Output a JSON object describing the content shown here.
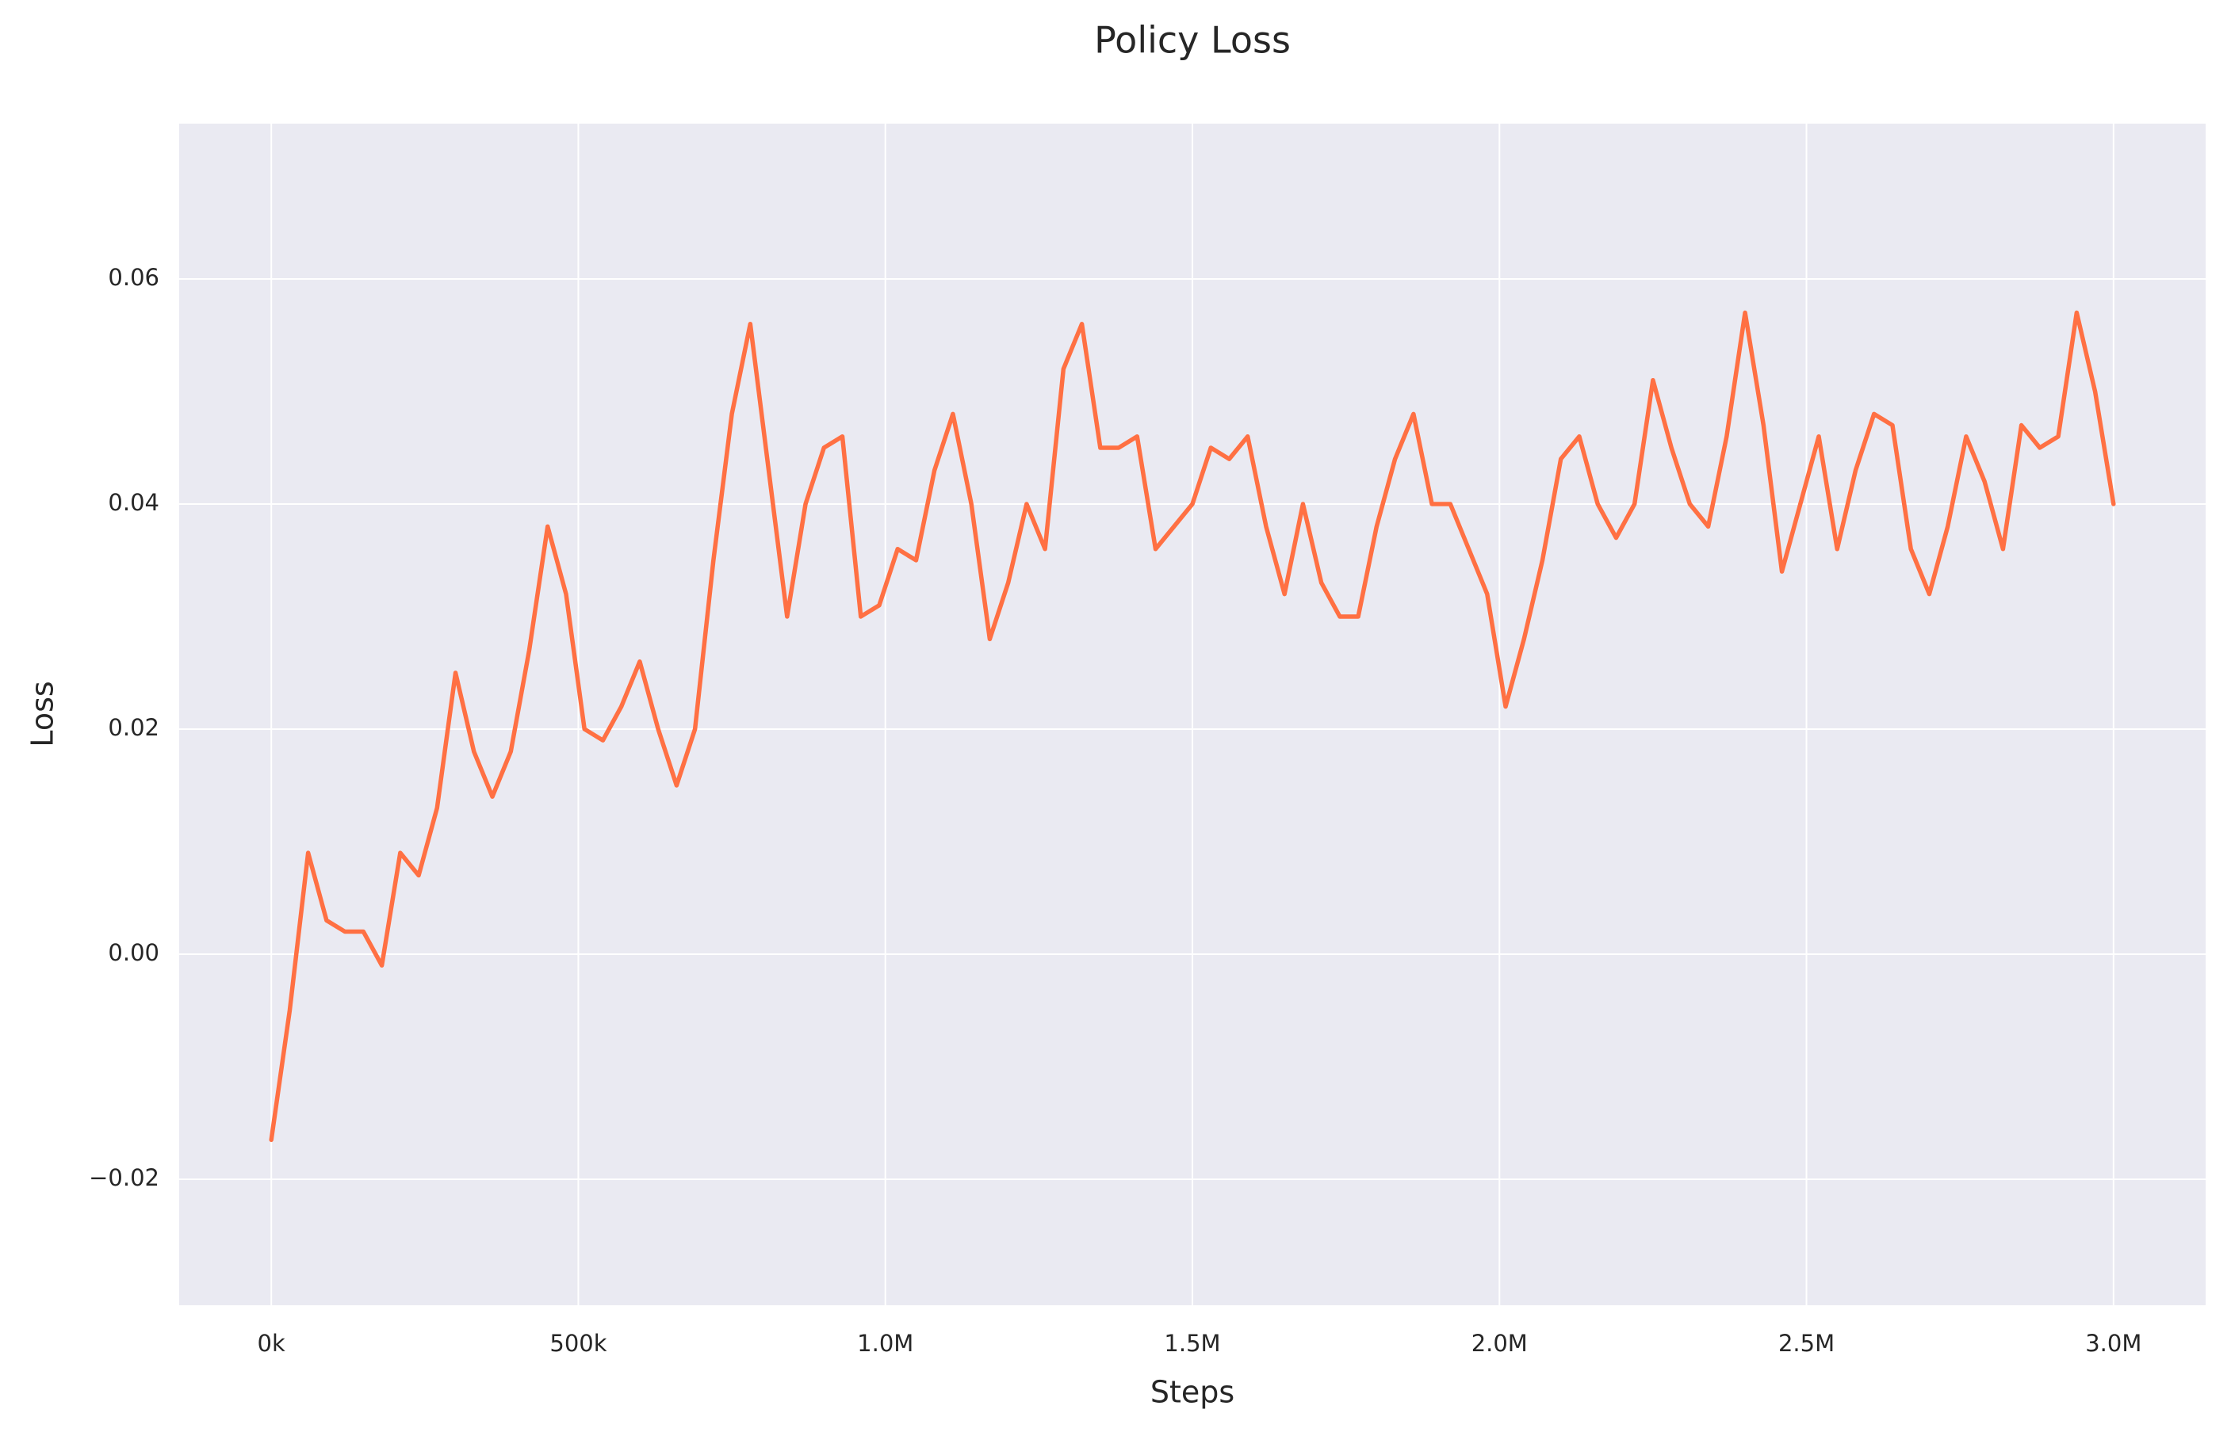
{
  "chart_data": {
    "type": "line",
    "title": "Policy Loss",
    "x_label": "Steps",
    "y_label": "Loss",
    "x": [
      0,
      30000,
      60000,
      90000,
      120000,
      150000,
      180000,
      210000,
      240000,
      270000,
      300000,
      330000,
      360000,
      390000,
      420000,
      450000,
      480000,
      510000,
      540000,
      570000,
      600000,
      630000,
      660000,
      690000,
      720000,
      750000,
      780000,
      810000,
      840000,
      870000,
      900000,
      930000,
      960000,
      990000,
      1020000,
      1050000,
      1080000,
      1110000,
      1140000,
      1170000,
      1200000,
      1230000,
      1260000,
      1290000,
      1320000,
      1350000,
      1380000,
      1410000,
      1440000,
      1470000,
      1500000,
      1530000,
      1560000,
      1590000,
      1620000,
      1650000,
      1680000,
      1710000,
      1740000,
      1770000,
      1800000,
      1830000,
      1860000,
      1890000,
      1920000,
      1950000,
      1980000,
      2010000,
      2040000,
      2070000,
      2100000,
      2130000,
      2160000,
      2190000,
      2220000,
      2250000,
      2280000,
      2310000,
      2340000,
      2370000,
      2400000,
      2430000,
      2460000,
      2490000,
      2520000,
      2550000,
      2580000,
      2610000,
      2640000,
      2670000,
      2700000,
      2730000,
      2760000,
      2790000,
      2820000,
      2850000,
      2880000,
      2910000,
      2940000,
      2970000,
      3000000
    ],
    "values": [
      -0.0165,
      -0.005,
      0.009,
      0.003,
      0.002,
      0.002,
      -0.001,
      0.009,
      0.007,
      0.013,
      0.025,
      0.018,
      0.014,
      0.018,
      0.027,
      0.038,
      0.032,
      0.02,
      0.019,
      0.022,
      0.026,
      0.02,
      0.015,
      0.02,
      0.035,
      0.048,
      0.056,
      0.043,
      0.03,
      0.04,
      0.045,
      0.046,
      0.03,
      0.031,
      0.036,
      0.035,
      0.043,
      0.048,
      0.04,
      0.028,
      0.033,
      0.04,
      0.036,
      0.052,
      0.056,
      0.045,
      0.045,
      0.046,
      0.036,
      0.038,
      0.04,
      0.045,
      0.044,
      0.046,
      0.038,
      0.032,
      0.04,
      0.033,
      0.03,
      0.03,
      0.038,
      0.044,
      0.048,
      0.04,
      0.04,
      0.036,
      0.032,
      0.022,
      0.028,
      0.035,
      0.044,
      0.046,
      0.04,
      0.037,
      0.04,
      0.051,
      0.045,
      0.04,
      0.038,
      0.046,
      0.057,
      0.047,
      0.034,
      0.04,
      0.046,
      0.036,
      0.043,
      0.048,
      0.047,
      0.036,
      0.032,
      0.038,
      0.046,
      0.042,
      0.036,
      0.047,
      0.045,
      0.046,
      0.057,
      0.05,
      0.04
    ],
    "color": "#ff7043",
    "xlim": [
      -150000,
      3150000
    ],
    "xticks": [
      {
        "value": 0,
        "label": "0k"
      },
      {
        "value": 500000,
        "label": "500k"
      },
      {
        "value": 1000000,
        "label": "1.0M"
      },
      {
        "value": 1500000,
        "label": "1.5M"
      },
      {
        "value": 2000000,
        "label": "2.0M"
      },
      {
        "value": 2500000,
        "label": "2.5M"
      },
      {
        "value": 3000000,
        "label": "3.0M"
      }
    ],
    "ylim": [
      -0.0312,
      0.0738
    ],
    "yticks": [
      {
        "value": -0.02,
        "label": "−0.02"
      },
      {
        "value": 0,
        "label": "0.00"
      },
      0.02,
      0.04,
      0.06
    ],
    "grid": true
  }
}
